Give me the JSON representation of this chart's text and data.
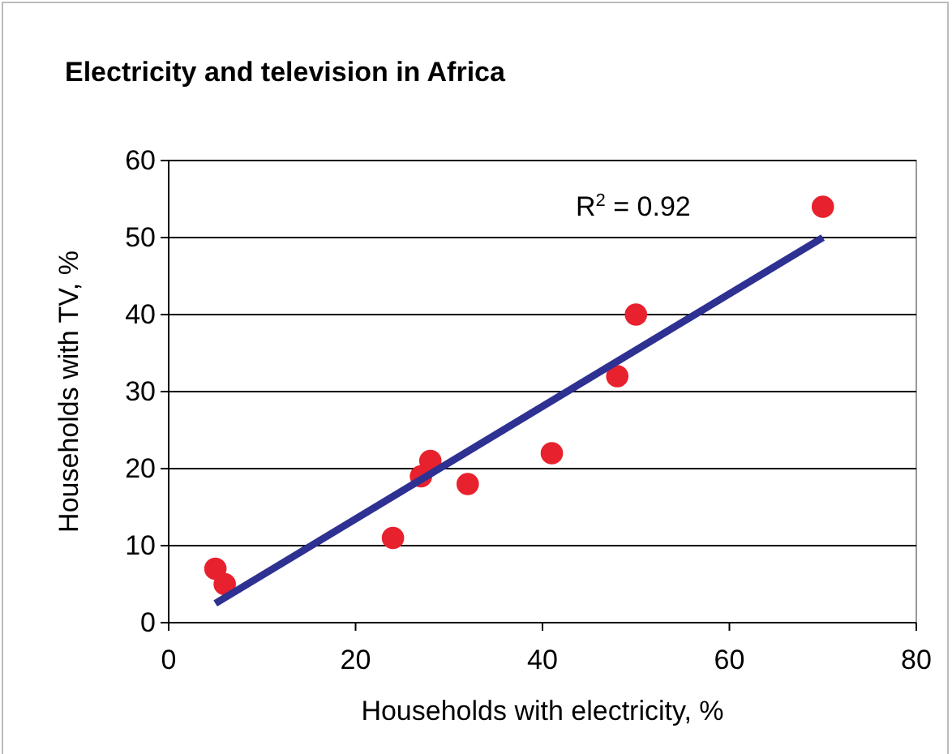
{
  "chart_data": {
    "type": "scatter",
    "title": "Electricity and television in Africa",
    "xlabel": "Households with electricity, %",
    "ylabel": "Households with TV, %",
    "x": [
      5,
      6,
      24,
      27,
      28,
      32,
      41,
      48,
      50,
      70
    ],
    "series": [
      {
        "color": "#e8212e",
        "marker": "circle",
        "values": [
          7,
          5,
          11,
          19,
          21,
          18,
          22,
          32,
          40,
          54
        ]
      },
      {
        "type": "line",
        "color": "#2e3192",
        "x": [
          5,
          70
        ],
        "values": [
          2.5,
          50
        ]
      }
    ],
    "annotations": [
      "R$^{2}$ = 0.92"
    ],
    "xlim": [
      0,
      80
    ],
    "xticks": [
      0,
      20,
      40,
      60,
      80
    ],
    "ylim": [
      0,
      60
    ],
    "yticks": [
      0,
      10,
      20,
      30,
      40,
      50,
      60
    ],
    "grid": "y"
  }
}
